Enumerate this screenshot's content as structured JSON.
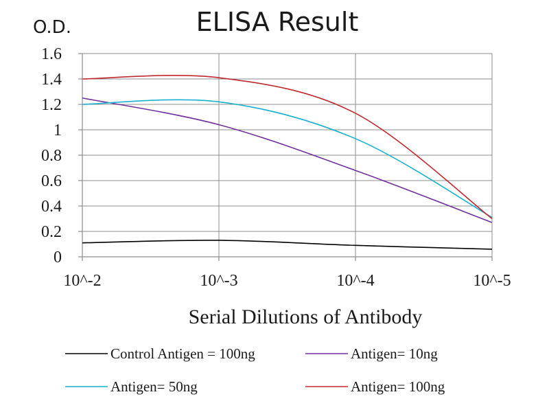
{
  "chart_data": {
    "type": "line",
    "title": "ELISA Result",
    "ylabel": "O.D.",
    "xlabel": "Serial Dilutions  of Antibody",
    "categories": [
      "10^-2",
      "10^-3",
      "10^-4",
      "10^-5"
    ],
    "ylim": [
      0,
      1.6
    ],
    "yticks": [
      "0",
      "0.2",
      "0.4",
      "0.6",
      "0.8",
      "1",
      "1.2",
      "1.4",
      "1.6"
    ],
    "grid": true,
    "legend_position": "bottom",
    "series": [
      {
        "name": "Control Antigen = 100ng",
        "color": "#000000",
        "values": [
          0.11,
          0.13,
          0.09,
          0.06
        ]
      },
      {
        "name": "Antigen= 10ng",
        "color": "#7030a0",
        "values": [
          1.25,
          1.04,
          0.68,
          0.27
        ]
      },
      {
        "name": "Antigen= 50ng",
        "color": "#17b0d0",
        "values": [
          1.2,
          1.22,
          0.93,
          0.31
        ]
      },
      {
        "name": "Antigen= 100ng",
        "color": "#c0282e",
        "values": [
          1.4,
          1.41,
          1.13,
          0.3
        ]
      }
    ]
  }
}
